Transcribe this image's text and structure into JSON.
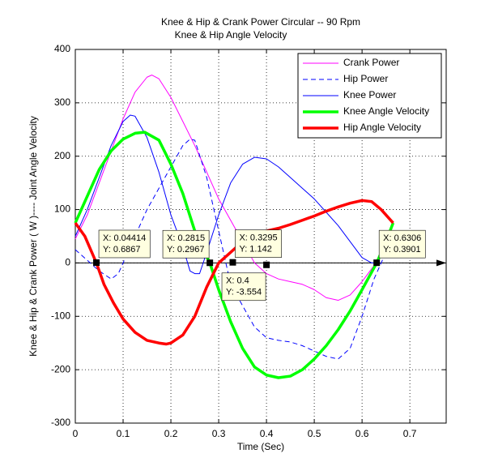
{
  "chart_data": {
    "type": "line",
    "title": [
      "Knee & Hip & Crank Power Circular  -- 90 Rpm",
      "Knee & Hip Angle Velocity"
    ],
    "xlabel": "Time (Sec)",
    "ylabel": "Knee & Hip & Crank Power ( W )---- Joint Angle Velocity",
    "xlim": [
      0,
      0.776
    ],
    "ylim": [
      -300,
      400
    ],
    "xticks": [
      0,
      0.1,
      0.2,
      0.3,
      0.4,
      0.5,
      0.6,
      0.7
    ],
    "yticks": [
      -300,
      -200,
      -100,
      0,
      100,
      200,
      300,
      400
    ],
    "grid": true,
    "legend": "upper right",
    "series": [
      {
        "name": "Crank Power",
        "color": "#ff00ff",
        "line_width": 1,
        "linestyle": "-",
        "x": [
          0,
          0.025,
          0.05,
          0.075,
          0.1,
          0.125,
          0.15,
          0.16,
          0.175,
          0.2,
          0.225,
          0.25,
          0.275,
          0.3,
          0.325,
          0.35,
          0.375,
          0.4,
          0.425,
          0.45,
          0.475,
          0.5,
          0.525,
          0.55,
          0.575,
          0.6,
          0.625,
          0.65,
          0.665
        ],
        "values": [
          45,
          90,
          150,
          210,
          270,
          320,
          348,
          352,
          345,
          310,
          265,
          220,
          170,
          120,
          80,
          40,
          0,
          -20,
          -30,
          -35,
          -40,
          -50,
          -65,
          -70,
          -60,
          -35,
          -5,
          40,
          75
        ]
      },
      {
        "name": "Hip Power",
        "color": "#0000ff",
        "line_width": 1,
        "linestyle": "--",
        "x": [
          0,
          0.025,
          0.05,
          0.075,
          0.09,
          0.1,
          0.125,
          0.15,
          0.175,
          0.2,
          0.225,
          0.24,
          0.25,
          0.275,
          0.3,
          0.325,
          0.35,
          0.375,
          0.4,
          0.425,
          0.45,
          0.475,
          0.5,
          0.525,
          0.55,
          0.575,
          0.6,
          0.625,
          0.65,
          0.665
        ],
        "values": [
          25,
          5,
          -15,
          -30,
          -20,
          0,
          50,
          100,
          140,
          180,
          220,
          232,
          230,
          160,
          60,
          -40,
          -80,
          -120,
          -140,
          -145,
          -148,
          -155,
          -165,
          -175,
          -180,
          -160,
          -100,
          -30,
          20,
          50
        ]
      },
      {
        "name": "Knee Power",
        "color": "#0000ff",
        "line_width": 1,
        "linestyle": "-",
        "x": [
          0,
          0.025,
          0.05,
          0.075,
          0.1,
          0.115,
          0.125,
          0.15,
          0.175,
          0.2,
          0.225,
          0.24,
          0.25,
          0.26,
          0.275,
          0.3,
          0.325,
          0.35,
          0.375,
          0.4,
          0.425,
          0.45,
          0.475,
          0.5,
          0.525,
          0.55,
          0.575,
          0.6,
          0.62,
          0.63
        ],
        "values": [
          50,
          100,
          160,
          220,
          265,
          277,
          275,
          235,
          170,
          90,
          30,
          -15,
          -20,
          -20,
          20,
          90,
          150,
          185,
          198,
          195,
          180,
          160,
          140,
          120,
          95,
          70,
          40,
          10,
          0,
          0
        ]
      },
      {
        "name": "Knee Angle Velocity",
        "color": "#00ff00",
        "line_width": 3.5,
        "linestyle": "-",
        "x": [
          0,
          0.025,
          0.05,
          0.075,
          0.1,
          0.125,
          0.145,
          0.175,
          0.2,
          0.225,
          0.25,
          0.2815,
          0.3,
          0.325,
          0.35,
          0.375,
          0.4,
          0.425,
          0.45,
          0.475,
          0.5,
          0.525,
          0.55,
          0.575,
          0.6,
          0.6306,
          0.65,
          0.665
        ],
        "values": [
          75,
          125,
          175,
          210,
          232,
          243,
          245,
          230,
          185,
          130,
          60,
          0,
          -50,
          -110,
          -160,
          -195,
          -210,
          -215,
          -212,
          -200,
          -180,
          -155,
          -125,
          -90,
          -50,
          0,
          40,
          75
        ]
      },
      {
        "name": "Hip Angle Velocity",
        "color": "#ff0000",
        "line_width": 3.5,
        "linestyle": "-",
        "x": [
          0,
          0.02,
          0.04414,
          0.06,
          0.08,
          0.1,
          0.125,
          0.15,
          0.175,
          0.19,
          0.2,
          0.225,
          0.25,
          0.275,
          0.3,
          0.325,
          0.35,
          0.375,
          0.4,
          0.425,
          0.45,
          0.475,
          0.5,
          0.525,
          0.55,
          0.575,
          0.6,
          0.62,
          0.64,
          0.665
        ],
        "values": [
          75,
          50,
          0,
          -40,
          -75,
          -105,
          -130,
          -145,
          -150,
          -152,
          -150,
          -135,
          -100,
          -45,
          0,
          20,
          40,
          50,
          60,
          65,
          72,
          80,
          88,
          97,
          105,
          112,
          117,
          115,
          100,
          75
        ]
      }
    ],
    "data_tips": [
      {
        "x": 0.04414,
        "y": 0.6867,
        "text": [
          "X: 0.04414",
          "Y: 0.6867"
        ],
        "placement": "above-right"
      },
      {
        "x": 0.2815,
        "y": 0.2967,
        "text": [
          "X: 0.2815",
          "Y: 0.2967"
        ],
        "placement": "above-left"
      },
      {
        "x": 0.3295,
        "y": 1.142,
        "text": [
          "X: 0.3295",
          "Y: 1.142"
        ],
        "placement": "above-right"
      },
      {
        "x": 0.4,
        "y": -3.554,
        "text": [
          "X: 0.4",
          "Y: -3.554"
        ],
        "placement": "below-left"
      },
      {
        "x": 0.6306,
        "y": 0.3901,
        "text": [
          "X: 0.6306",
          "Y: 0.3901"
        ],
        "placement": "above-right"
      }
    ]
  }
}
